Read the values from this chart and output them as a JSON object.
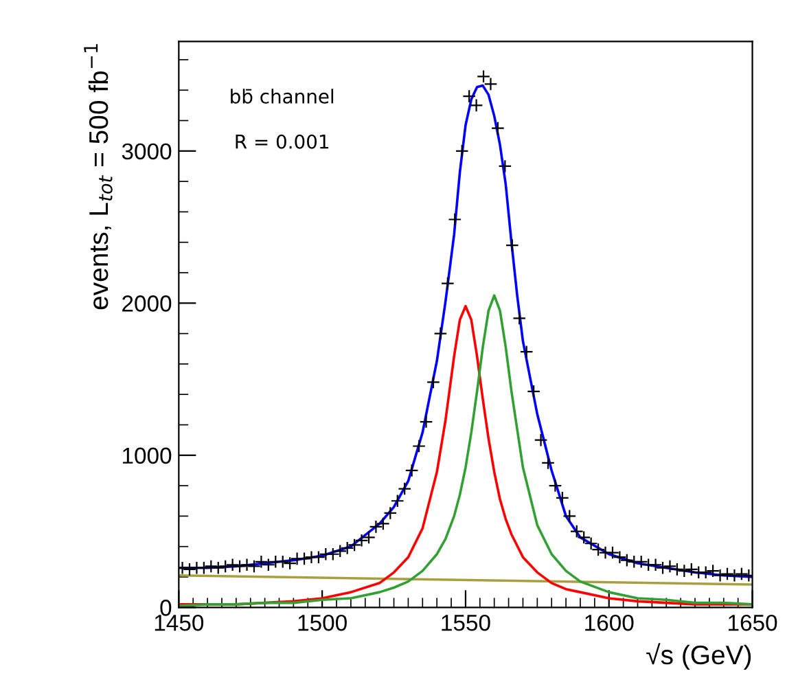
{
  "chart_data": {
    "type": "line",
    "xlabel": "√s (GeV)",
    "ylabel": "events, L$_{tot}$ = 500 fb$^{−1}$",
    "annotations": [
      "bb̄ channel",
      "R = 0.001"
    ],
    "xlim": [
      1450,
      1650
    ],
    "xticks": [
      1450,
      1500,
      1550,
      1600,
      1650
    ],
    "ylim": [
      0,
      3720
    ],
    "yticks": [
      0,
      1000,
      2000,
      3000
    ],
    "grid": false,
    "legend": false,
    "series": [
      {
        "color": "#a8a040",
        "x": [
          1450,
          1650
        ],
        "values": [
          210,
          150
        ]
      },
      {
        "color": "#ff0000",
        "x": [
          1450,
          1460,
          1470,
          1480,
          1490,
          1500,
          1510,
          1520,
          1525,
          1530,
          1535,
          1540,
          1543,
          1546,
          1548,
          1550,
          1552,
          1554,
          1556,
          1558,
          1560,
          1562,
          1564,
          1566,
          1570,
          1575,
          1580,
          1585,
          1590,
          1600,
          1610,
          1620,
          1630,
          1640,
          1650
        ],
        "values": [
          20,
          20,
          20,
          30,
          40,
          60,
          100,
          160,
          230,
          330,
          520,
          890,
          1230,
          1650,
          1890,
          1980,
          1890,
          1650,
          1370,
          1110,
          890,
          710,
          580,
          480,
          330,
          230,
          160,
          120,
          100,
          60,
          40,
          30,
          20,
          20,
          20
        ]
      },
      {
        "color": "#33a033",
        "x": [
          1450,
          1460,
          1470,
          1480,
          1490,
          1500,
          1510,
          1520,
          1525,
          1530,
          1535,
          1540,
          1543,
          1546,
          1548,
          1550,
          1552,
          1554,
          1556,
          1558,
          1560,
          1562,
          1564,
          1566,
          1570,
          1575,
          1580,
          1585,
          1590,
          1600,
          1610,
          1620,
          1630,
          1640,
          1650
        ],
        "values": [
          10,
          20,
          20,
          30,
          30,
          50,
          60,
          100,
          130,
          170,
          240,
          350,
          450,
          600,
          740,
          920,
          1150,
          1420,
          1710,
          1950,
          2050,
          1950,
          1710,
          1420,
          920,
          540,
          350,
          240,
          170,
          100,
          60,
          50,
          30,
          30,
          20
        ]
      },
      {
        "color": "#0000ff",
        "x": [
          1450,
          1460,
          1470,
          1480,
          1490,
          1500,
          1510,
          1520,
          1525,
          1530,
          1535,
          1540,
          1543,
          1546,
          1548,
          1550,
          1552,
          1554,
          1556,
          1558,
          1560,
          1562,
          1564,
          1566,
          1568,
          1570,
          1575,
          1580,
          1585,
          1590,
          1600,
          1610,
          1620,
          1630,
          1640,
          1650
        ],
        "values": [
          260,
          260,
          270,
          290,
          310,
          340,
          400,
          550,
          660,
          830,
          1150,
          1620,
          2010,
          2450,
          2860,
          3170,
          3340,
          3420,
          3430,
          3370,
          3230,
          3040,
          2780,
          2400,
          2050,
          1750,
          1270,
          900,
          600,
          460,
          350,
          290,
          260,
          230,
          210,
          200
        ]
      },
      {
        "type": "scatter",
        "color": "#000000",
        "marker": "cross",
        "x": [
          1451.25,
          1453.75,
          1456.25,
          1458.75,
          1461.25,
          1463.75,
          1466.25,
          1468.75,
          1471.25,
          1473.75,
          1476.25,
          1478.75,
          1481.25,
          1483.75,
          1486.25,
          1488.75,
          1491.25,
          1493.75,
          1496.25,
          1498.75,
          1501.25,
          1503.75,
          1506.25,
          1508.75,
          1511.25,
          1513.75,
          1516.25,
          1518.75,
          1521.25,
          1523.75,
          1526.25,
          1528.75,
          1531.25,
          1533.75,
          1536.25,
          1538.75,
          1541.25,
          1543.75,
          1546.25,
          1548.75,
          1551.25,
          1553.75,
          1556.25,
          1558.75,
          1561.25,
          1563.75,
          1566.25,
          1568.75,
          1571.25,
          1573.75,
          1576.25,
          1578.75,
          1581.25,
          1583.75,
          1586.25,
          1588.75,
          1591.25,
          1593.75,
          1596.25,
          1598.75,
          1601.25,
          1603.75,
          1606.25,
          1608.75,
          1611.25,
          1613.75,
          1616.25,
          1618.75,
          1621.25,
          1623.75,
          1626.25,
          1628.75,
          1631.25,
          1633.75,
          1636.25,
          1638.75,
          1641.25,
          1643.75,
          1646.25,
          1648.75
        ],
        "values": [
          260,
          250,
          260,
          260,
          270,
          260,
          270,
          280,
          270,
          280,
          270,
          300,
          280,
          300,
          300,
          290,
          320,
          320,
          330,
          330,
          350,
          350,
          370,
          390,
          410,
          440,
          460,
          530,
          550,
          620,
          700,
          780,
          900,
          1060,
          1220,
          1480,
          1800,
          2130,
          2550,
          3000,
          3360,
          3300,
          3490,
          3440,
          3150,
          2900,
          2380,
          1900,
          1680,
          1420,
          1100,
          950,
          800,
          720,
          600,
          500,
          460,
          420,
          380,
          360,
          360,
          330,
          310,
          300,
          300,
          280,
          280,
          260,
          270,
          250,
          240,
          250,
          230,
          230,
          240,
          210,
          220,
          210,
          220,
          210
        ]
      }
    ]
  }
}
